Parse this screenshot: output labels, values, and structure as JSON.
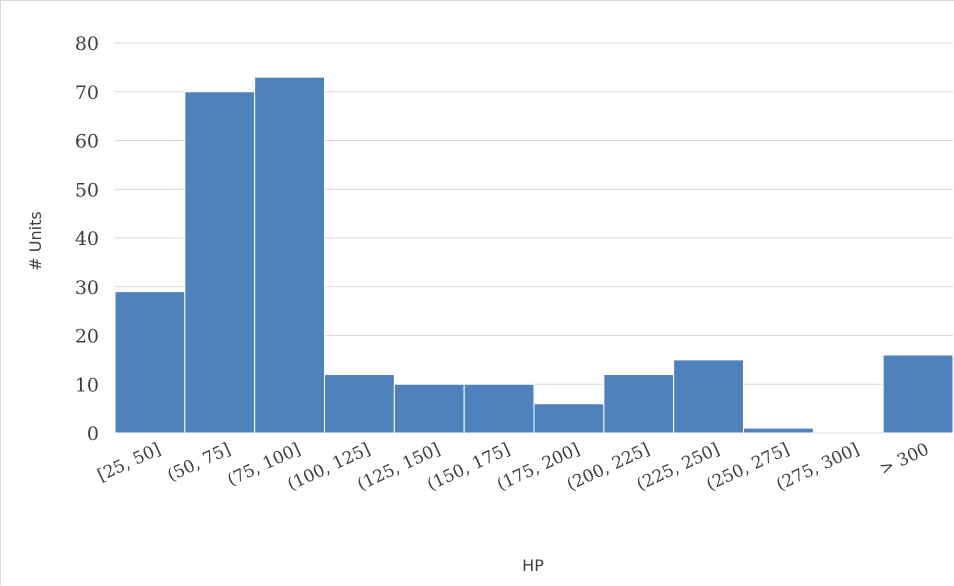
{
  "chart_data": {
    "type": "bar",
    "title": "",
    "xlabel": "HP",
    "ylabel": "# Units",
    "categories": [
      "[25, 50]",
      "(50, 75]",
      "(75, 100]",
      "(100, 125]",
      "(125, 150]",
      "(150, 175]",
      "(175, 200]",
      "(200, 225]",
      "(225, 250]",
      "(250, 275]",
      "(275, 300]",
      "> 300"
    ],
    "values": [
      29,
      70,
      73,
      12,
      10,
      10,
      6,
      12,
      15,
      1,
      0,
      16
    ],
    "ylim": [
      0,
      80
    ],
    "yticks": [
      "0",
      "10",
      "20",
      "30",
      "40",
      "50",
      "60",
      "70",
      "80"
    ],
    "grid": true,
    "legend": "none",
    "colors": {
      "bar": "#4f81bd",
      "bar_edge": "#ffffff",
      "grid": "#d9d9d9",
      "text": "#404040"
    }
  }
}
